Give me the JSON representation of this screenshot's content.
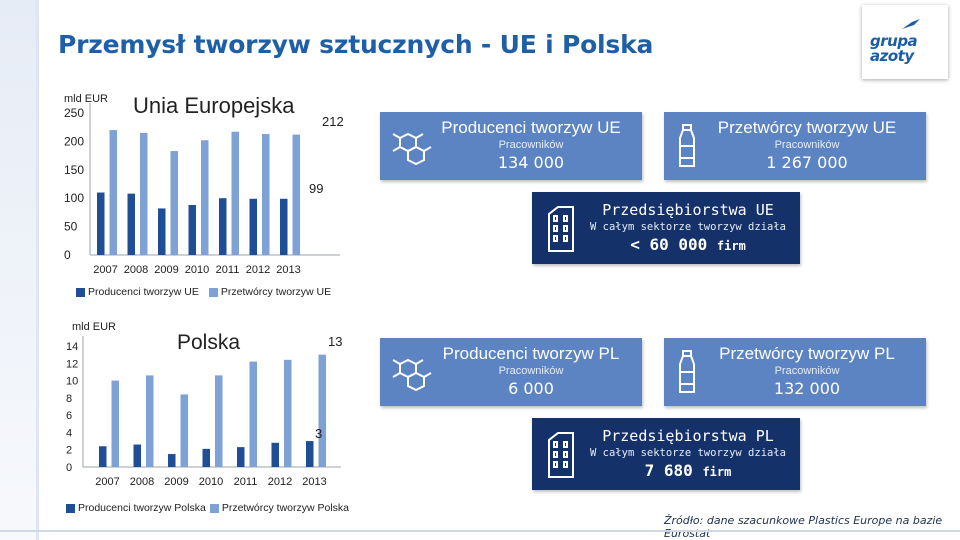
{
  "page": {
    "title": "Przemysł tworzyw sztucznych - UE i Polska"
  },
  "logo": {
    "line1": "grupa",
    "line2": "azoty"
  },
  "colors": {
    "producers": "#1f4e96",
    "processors": "#7fa2d6",
    "card_light": "#5d84c2",
    "card_dark": "#15316a"
  },
  "chart_data": [
    {
      "type": "bar",
      "title": "Unia Europejska",
      "ylabel": "mld EUR",
      "categories": [
        "2007",
        "2008",
        "2009",
        "2010",
        "2011",
        "2012",
        "2013"
      ],
      "ylim": [
        0,
        250
      ],
      "yticks": [
        "250",
        "200",
        "150",
        "100",
        "50",
        "0"
      ],
      "series": [
        {
          "name": "Producenci tworzyw UE",
          "values": [
            110,
            108,
            82,
            88,
            100,
            99,
            99
          ]
        },
        {
          "name": "Przetwórcy tworzyw UE",
          "values": [
            220,
            215,
            183,
            202,
            217,
            213,
            212
          ]
        }
      ],
      "data_labels": {
        "processors_2013": "212",
        "producers_2013": "99"
      }
    },
    {
      "type": "bar",
      "title": "Polska",
      "ylabel": "mld EUR",
      "categories": [
        "2007",
        "2008",
        "2009",
        "2010",
        "2011",
        "2012",
        "2013"
      ],
      "ylim": [
        0,
        14
      ],
      "yticks": [
        "14",
        "12",
        "10",
        "8",
        "6",
        "4",
        "2",
        "0"
      ],
      "series": [
        {
          "name": "Producenci tworzyw Polska",
          "values": [
            2.4,
            2.6,
            1.5,
            2.1,
            2.3,
            2.8,
            3
          ]
        },
        {
          "name": "Przetwórcy tworzyw Polska",
          "values": [
            10,
            10.6,
            8.4,
            10.6,
            12.2,
            12.4,
            13
          ]
        }
      ],
      "data_labels": {
        "processors_2013": "13",
        "producers_2013": "3"
      }
    }
  ],
  "cards": {
    "eu_producers": {
      "title": "Producenci tworzyw UE",
      "sub": "Pracowników",
      "value": "134 000",
      "icon": "molecule-icon"
    },
    "eu_processors": {
      "title": "Przetwórcy tworzyw UE",
      "sub": "Pracowników",
      "value": "1 267 000",
      "icon": "bottle-icon"
    },
    "eu_companies": {
      "title": "Przedsiębiorstwa UE",
      "sub": "W całym sektorze tworzyw działa",
      "value": "< 60 000",
      "unit": "firm",
      "icon": "building-icon"
    },
    "pl_producers": {
      "title": "Producenci tworzyw PL",
      "sub": "Pracowników",
      "value": "6 000",
      "icon": "molecule-icon"
    },
    "pl_processors": {
      "title": "Przetwórcy tworzyw PL",
      "sub": "Pracowników",
      "value": "132 000",
      "icon": "bottle-icon"
    },
    "pl_companies": {
      "title": "Przedsiębiorstwa PL",
      "sub": "W całym sektorze tworzyw działa",
      "value": "7 680",
      "unit": "firm",
      "icon": "building-icon"
    }
  },
  "source": "Źródło: dane szacunkowe Plastics Europe na bazie Eurostat"
}
